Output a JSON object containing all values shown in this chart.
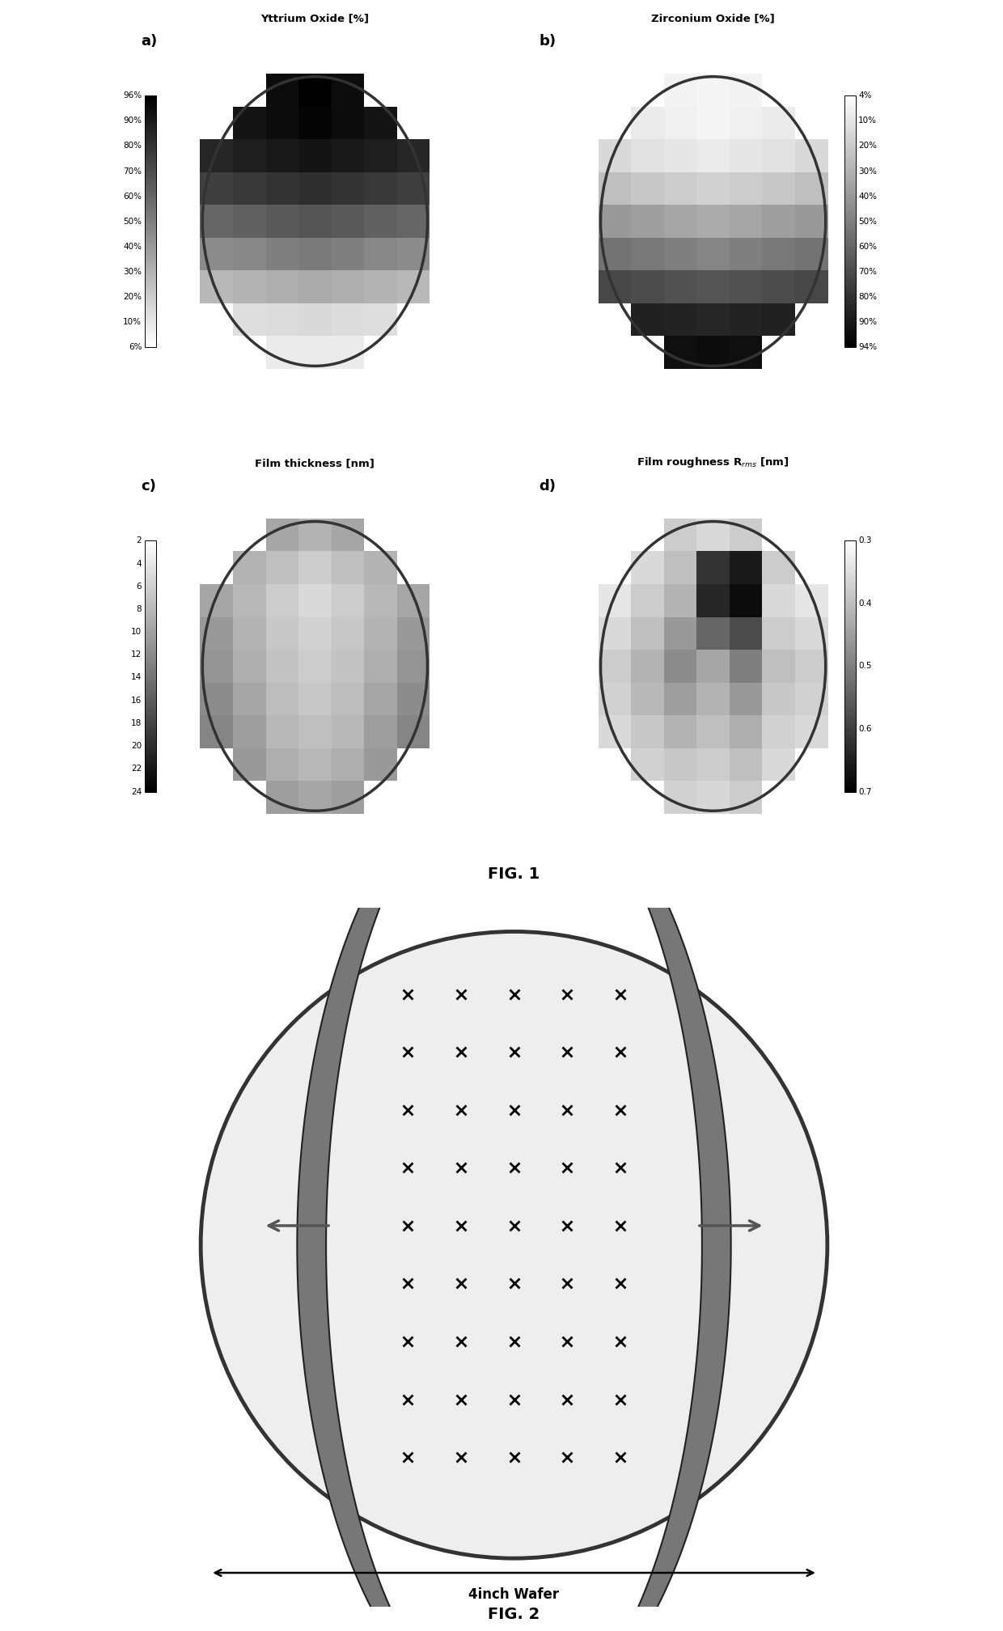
{
  "fig1_title": "FIG. 1",
  "fig2_title": "FIG. 2",
  "panel_a_title": "Yttrium Oxide [%]",
  "panel_b_title": "Zirconium Oxide [%]",
  "panel_c_title": "Film thickness [nm]",
  "panel_d_title": "Film roughness R$_{rms}$ [nm]",
  "panel_a_label": "a)",
  "panel_b_label": "b)",
  "panel_c_label": "c)",
  "panel_d_label": "d)",
  "panel_a_cbar_ticks": [
    "96%",
    "90%",
    "80%",
    "70%",
    "60%",
    "50%",
    "40%",
    "30%",
    "20%",
    "10%",
    "6%"
  ],
  "panel_b_cbar_ticks": [
    "4%",
    "10%",
    "20%",
    "30%",
    "40%",
    "50%",
    "60%",
    "70%",
    "80%",
    "90%",
    "94%"
  ],
  "panel_c_cbar_ticks": [
    "2",
    "4",
    "6",
    "8",
    "10",
    "12",
    "14",
    "16",
    "18",
    "20",
    "22",
    "24"
  ],
  "panel_d_cbar_ticks": [
    "0.3",
    "0.4",
    "0.5",
    "0.6",
    "0.7"
  ],
  "wafer_label": "4inch Wafer",
  "background_color": "#ffffff"
}
